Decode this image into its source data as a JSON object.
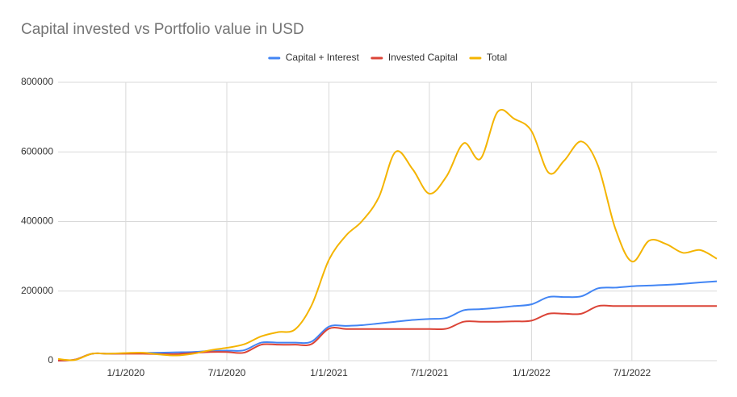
{
  "chart_data": {
    "type": "line",
    "title": "Capital invested vs Portfolio value in USD",
    "x": [
      "9/1/2019",
      "10/1/2019",
      "11/1/2019",
      "12/1/2019",
      "1/1/2020",
      "2/1/2020",
      "3/1/2020",
      "4/1/2020",
      "5/1/2020",
      "6/1/2020",
      "7/1/2020",
      "8/1/2020",
      "9/1/2020",
      "10/1/2020",
      "11/1/2020",
      "12/1/2020",
      "1/1/2021",
      "2/1/2021",
      "3/1/2021",
      "4/1/2021",
      "5/1/2021",
      "6/1/2021",
      "7/1/2021",
      "8/1/2021",
      "9/1/2021",
      "10/1/2021",
      "11/1/2021",
      "12/1/2021",
      "1/1/2022",
      "2/1/2022",
      "3/1/2022",
      "4/1/2022",
      "5/1/2022",
      "6/1/2022",
      "7/1/2022",
      "8/1/2022",
      "9/1/2022",
      "10/1/2022",
      "11/1/2022",
      "12/1/2022"
    ],
    "series": [
      {
        "name": "Capital + Interest",
        "color": "#4285f4",
        "values": [
          0,
          3000,
          20000,
          20000,
          21000,
          22000,
          23000,
          24000,
          25000,
          28000,
          29000,
          30000,
          52000,
          52000,
          52000,
          55000,
          98000,
          100000,
          102000,
          107000,
          112000,
          117000,
          120000,
          123000,
          145000,
          148000,
          152000,
          157000,
          162000,
          183000,
          183000,
          185000,
          208000,
          210000,
          214000,
          216000,
          218000,
          221000,
          225000,
          228000
        ]
      },
      {
        "name": "Invested Capital",
        "color": "#db4437",
        "values": [
          0,
          3000,
          20000,
          20000,
          20000,
          20000,
          19000,
          19000,
          22000,
          25000,
          25000,
          23000,
          46000,
          46000,
          46000,
          48000,
          92000,
          91000,
          91000,
          91000,
          91000,
          91000,
          91000,
          92000,
          112000,
          112000,
          112000,
          113000,
          115000,
          135000,
          135000,
          135000,
          157000,
          157000,
          157000,
          157000,
          157000,
          157000,
          157000,
          157000
        ]
      },
      {
        "name": "Total",
        "color": "#f4b400",
        "values": [
          5000,
          2000,
          20000,
          20000,
          22000,
          23000,
          18000,
          15000,
          20000,
          30000,
          37000,
          47000,
          70000,
          82000,
          90000,
          160000,
          290000,
          360000,
          400000,
          470000,
          600000,
          550000,
          480000,
          530000,
          625000,
          580000,
          715000,
          695000,
          660000,
          540000,
          575000,
          630000,
          560000,
          380000,
          285000,
          345000,
          335000,
          310000,
          318000,
          293000
        ]
      }
    ],
    "xlim": [
      "9/1/2019",
      "12/1/2022"
    ],
    "xticks": [
      "1/1/2020",
      "7/1/2020",
      "1/1/2021",
      "7/1/2021",
      "1/1/2022",
      "7/1/2022"
    ],
    "ylim": [
      0,
      800000
    ],
    "yticks": [
      0,
      200000,
      400000,
      600000,
      800000
    ],
    "grid": true,
    "legend": "top"
  }
}
